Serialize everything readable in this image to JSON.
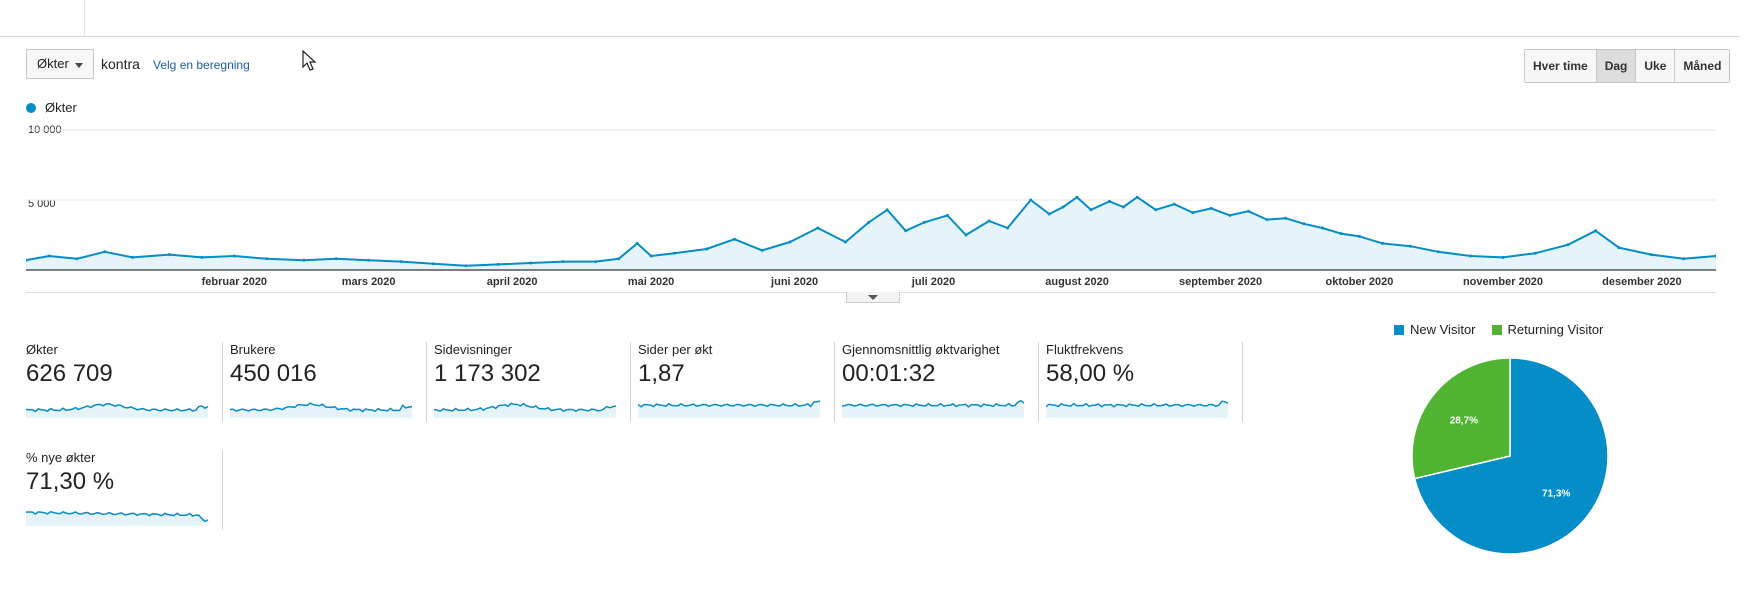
{
  "toolbar": {
    "metric_selector": "Økter",
    "versus_label": "kontra",
    "choose_metric_link": "Velg en beregning",
    "period_buttons": [
      "Hver time",
      "Dag",
      "Uke",
      "Måned"
    ],
    "active_period": "Dag"
  },
  "main_chart": {
    "legend": "Økter",
    "line_color": "#058dc7",
    "fill_color": "#e6f4fa"
  },
  "chart_data": [
    {
      "type": "area",
      "series": [
        {
          "name": "Økter"
        }
      ],
      "ylim": [
        0,
        10000
      ],
      "y_ticks": [
        "10 000",
        "5 000"
      ],
      "x_tick_labels": [
        "februar 2020",
        "mars 2020",
        "april 2020",
        "mai 2020",
        "juni 2020",
        "juli 2020",
        "august 2020",
        "september 2020",
        "oktober 2020",
        "november 2020",
        "desember 2020"
      ],
      "x_range": [
        "2020-01-01",
        "2020-12-31"
      ],
      "grid": true,
      "points": [
        [
          "2020-01-01",
          700
        ],
        [
          "2020-01-06",
          1000
        ],
        [
          "2020-01-12",
          800
        ],
        [
          "2020-01-18",
          1300
        ],
        [
          "2020-01-24",
          900
        ],
        [
          "2020-02-01",
          1100
        ],
        [
          "2020-02-08",
          900
        ],
        [
          "2020-02-15",
          1000
        ],
        [
          "2020-02-22",
          800
        ],
        [
          "2020-03-01",
          700
        ],
        [
          "2020-03-08",
          800
        ],
        [
          "2020-03-15",
          700
        ],
        [
          "2020-03-22",
          600
        ],
        [
          "2020-03-29",
          450
        ],
        [
          "2020-04-05",
          300
        ],
        [
          "2020-04-12",
          400
        ],
        [
          "2020-04-19",
          500
        ],
        [
          "2020-04-26",
          600
        ],
        [
          "2020-05-03",
          600
        ],
        [
          "2020-05-08",
          800
        ],
        [
          "2020-05-12",
          1900
        ],
        [
          "2020-05-15",
          1000
        ],
        [
          "2020-05-20",
          1200
        ],
        [
          "2020-05-27",
          1500
        ],
        [
          "2020-06-02",
          2200
        ],
        [
          "2020-06-08",
          1400
        ],
        [
          "2020-06-14",
          2000
        ],
        [
          "2020-06-20",
          3000
        ],
        [
          "2020-06-26",
          2000
        ],
        [
          "2020-07-01",
          3400
        ],
        [
          "2020-07-05",
          4300
        ],
        [
          "2020-07-09",
          2800
        ],
        [
          "2020-07-13",
          3400
        ],
        [
          "2020-07-18",
          3900
        ],
        [
          "2020-07-22",
          2500
        ],
        [
          "2020-07-27",
          3500
        ],
        [
          "2020-07-31",
          3000
        ],
        [
          "2020-08-05",
          5000
        ],
        [
          "2020-08-09",
          4000
        ],
        [
          "2020-08-12",
          4500
        ],
        [
          "2020-08-15",
          5200
        ],
        [
          "2020-08-18",
          4300
        ],
        [
          "2020-08-22",
          4900
        ],
        [
          "2020-08-25",
          4500
        ],
        [
          "2020-08-28",
          5200
        ],
        [
          "2020-09-01",
          4300
        ],
        [
          "2020-09-05",
          4700
        ],
        [
          "2020-09-09",
          4100
        ],
        [
          "2020-09-13",
          4400
        ],
        [
          "2020-09-17",
          3900
        ],
        [
          "2020-09-21",
          4200
        ],
        [
          "2020-09-25",
          3600
        ],
        [
          "2020-09-29",
          3700
        ],
        [
          "2020-10-03",
          3300
        ],
        [
          "2020-10-07",
          3000
        ],
        [
          "2020-10-11",
          2600
        ],
        [
          "2020-10-15",
          2400
        ],
        [
          "2020-10-20",
          1900
        ],
        [
          "2020-10-26",
          1700
        ],
        [
          "2020-11-01",
          1300
        ],
        [
          "2020-11-08",
          1000
        ],
        [
          "2020-11-15",
          900
        ],
        [
          "2020-11-22",
          1200
        ],
        [
          "2020-11-29",
          1800
        ],
        [
          "2020-12-05",
          2800
        ],
        [
          "2020-12-10",
          1600
        ],
        [
          "2020-12-17",
          1100
        ],
        [
          "2020-12-24",
          800
        ],
        [
          "2020-12-31",
          1000
        ]
      ]
    },
    {
      "type": "pie",
      "legend": [
        "New Visitor",
        "Returning Visitor"
      ],
      "slices": [
        {
          "label": "New Visitor",
          "value": 71.3,
          "text": "71,3%",
          "color": "#058dc7"
        },
        {
          "label": "Returning Visitor",
          "value": 28.7,
          "text": "28,7%",
          "color": "#50b432"
        }
      ]
    }
  ],
  "scorecards": [
    {
      "label": "Økter",
      "value": "626 709"
    },
    {
      "label": "Brukere",
      "value": "450 016"
    },
    {
      "label": "Sidevisninger",
      "value": "1 173 302"
    },
    {
      "label": "Sider per økt",
      "value": "1,87"
    },
    {
      "label": "Gjennomsnittlig øktvarighet",
      "value": "00:01:32"
    },
    {
      "label": "Fluktfrekvens",
      "value": "58,00 %"
    },
    {
      "label": "% nye økter",
      "value": "71,30 %"
    }
  ]
}
